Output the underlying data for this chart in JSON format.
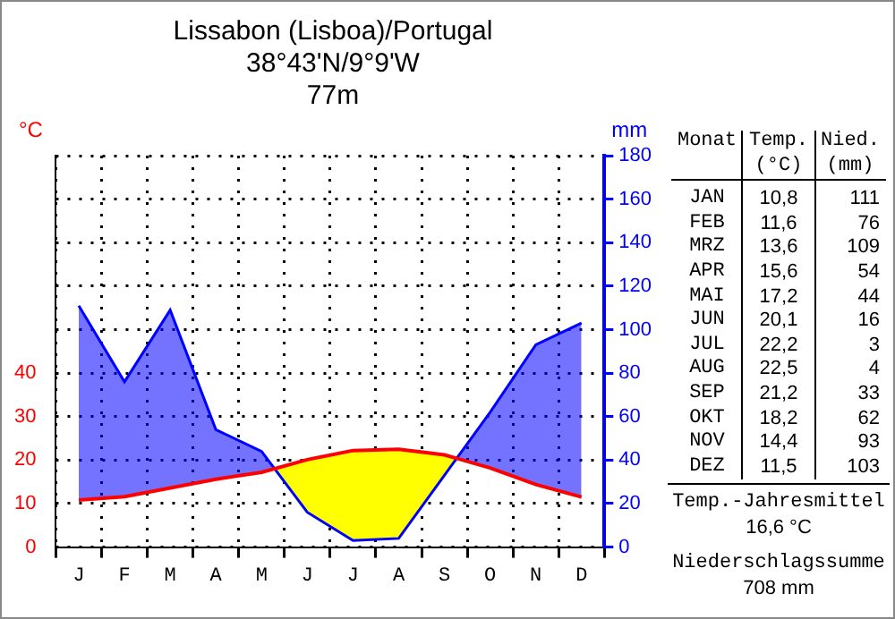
{
  "chart_data": {
    "type": "line",
    "title": "Lissabon (Lisboa)/Portugal",
    "subtitle": "38°43'N/9°9'W",
    "ylabel": "°C",
    "y2label": "mm",
    "categories": [
      "J",
      "F",
      "M",
      "A",
      "M",
      "J",
      "J",
      "A",
      "S",
      "O",
      "N",
      "D"
    ],
    "series": [
      {
        "color": "#ff0000",
        "values": [
          10.8,
          11.6,
          13.6,
          15.6,
          17.2,
          20.1,
          22.2,
          22.5,
          21.2,
          18.2,
          14.4,
          11.5
        ]
      },
      {
        "color": "#0000ff",
        "axis": "y2",
        "values": [
          111,
          76,
          109,
          54,
          44,
          16,
          3,
          4,
          33,
          62,
          93,
          103
        ]
      }
    ],
    "ylim": [
      0,
      90
    ],
    "yticks": [
      0,
      10,
      20,
      30,
      40
    ],
    "y2lim": [
      0,
      180
    ],
    "y2ticks": [
      0,
      20,
      40,
      60,
      80,
      100,
      120,
      140,
      160,
      180
    ],
    "grid": true,
    "marker": "none",
    "annotations": [
      "77m",
      "Monat",
      "Temp.",
      "(°C)",
      "Nied.",
      "(mm)",
      "JAN",
      "FEB",
      "MRZ",
      "APR",
      "MAI",
      "JUN",
      "JUL",
      "AUG",
      "SEP",
      "OKT",
      "NOV",
      "DEZ",
      "10,8",
      "11,6",
      "13,6",
      "15,6",
      "17,2",
      "20,1",
      "22,2",
      "22,5",
      "21,2",
      "18,2",
      "14,4",
      "11,5",
      "111",
      "76",
      "109",
      "54",
      "44",
      "16",
      "3",
      "4",
      "33",
      "62",
      "93",
      "103",
      "Temp.-Jahresmittel",
      "16,6 °C",
      "Niederschlagssumme",
      "708 mm"
    ]
  }
}
